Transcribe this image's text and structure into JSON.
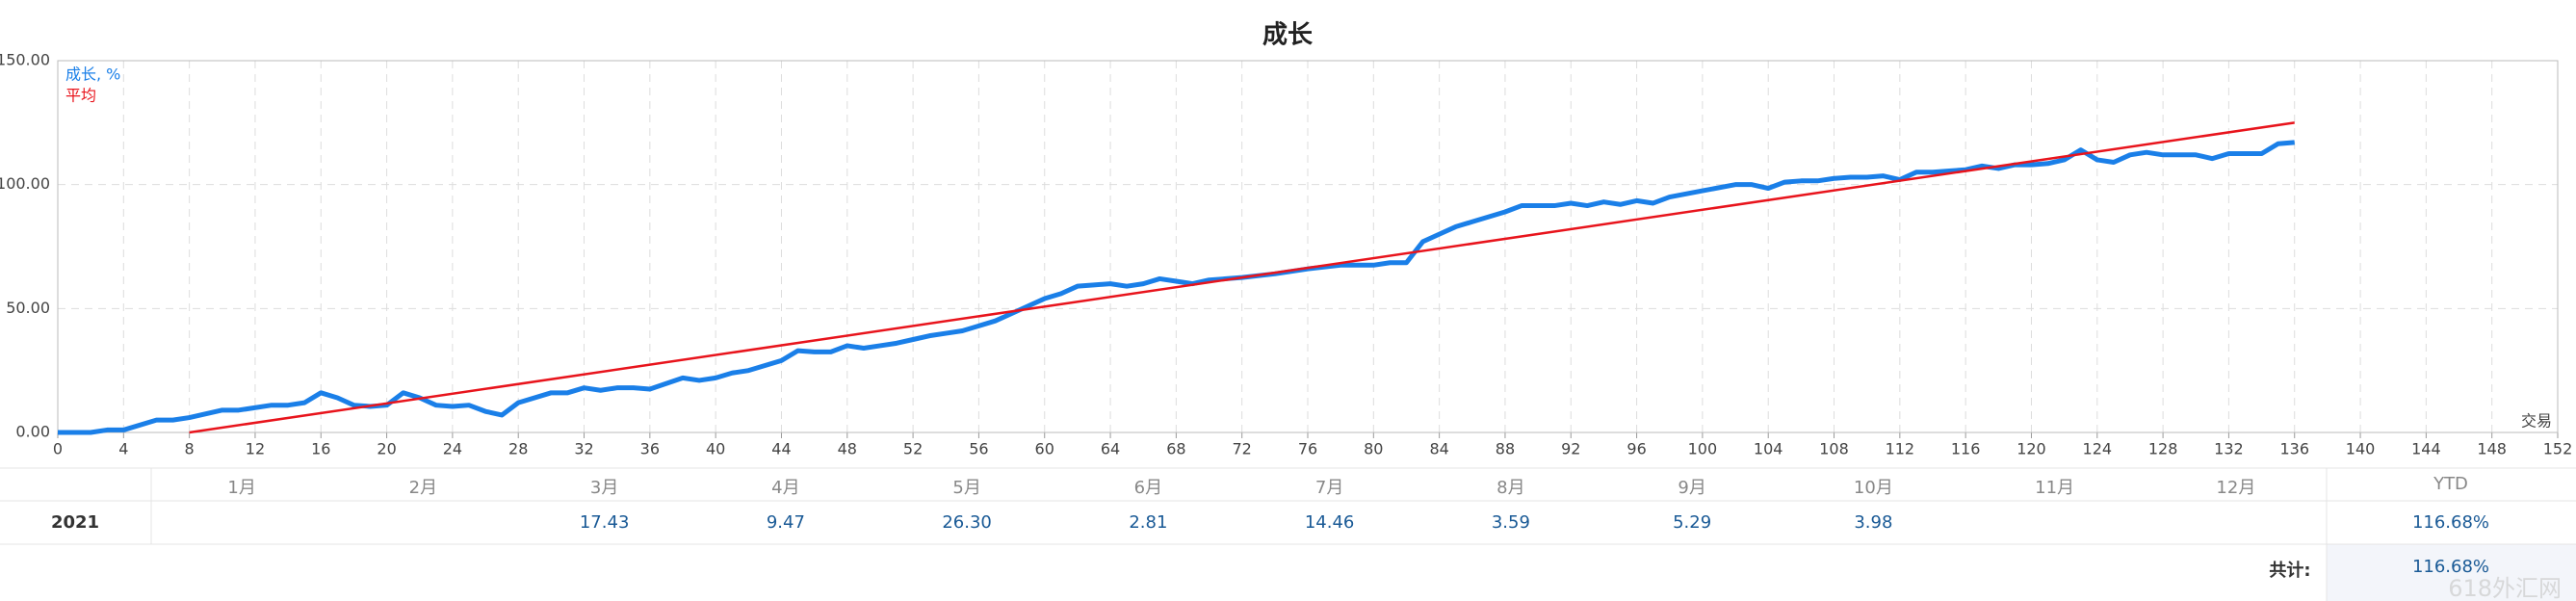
{
  "chart_data": {
    "type": "line",
    "title": "成长",
    "x_label": "交易",
    "grid": true,
    "xlim": [
      0,
      152
    ],
    "xticks": [
      0,
      4,
      8,
      12,
      16,
      20,
      24,
      28,
      32,
      36,
      40,
      44,
      48,
      52,
      56,
      60,
      64,
      68,
      72,
      76,
      80,
      84,
      88,
      92,
      96,
      100,
      104,
      108,
      112,
      116,
      120,
      124,
      128,
      132,
      136,
      140,
      144,
      148,
      152
    ],
    "ylim": [
      0,
      150
    ],
    "yticks": [
      {
        "value": 0,
        "label": "0.00"
      },
      {
        "value": 50,
        "label": "50.00"
      },
      {
        "value": 100,
        "label": "100.00"
      },
      {
        "value": 150,
        "label": "150.00"
      }
    ],
    "series": [
      {
        "name": "成长, %",
        "color": "#1a7fe8",
        "x": [
          0,
          2,
          3,
          4,
          6,
          7,
          8,
          10,
          11,
          13,
          14,
          15,
          16,
          17,
          18,
          19,
          20,
          21,
          22,
          23,
          24,
          25,
          26,
          27,
          28,
          30,
          31,
          32,
          33,
          34,
          35,
          36,
          38,
          39,
          40,
          41,
          42,
          43,
          44,
          45,
          46,
          47,
          48,
          49,
          50,
          51,
          52,
          53,
          54,
          55,
          56,
          57,
          58,
          59,
          60,
          61,
          62,
          63,
          64,
          65,
          66,
          67,
          68,
          69,
          70,
          72,
          74,
          76,
          78,
          80,
          81,
          82,
          83,
          84,
          85,
          86,
          87,
          88,
          89,
          90,
          91,
          92,
          93,
          94,
          95,
          96,
          97,
          98,
          100,
          102,
          103,
          104,
          105,
          106,
          107,
          108,
          109,
          110,
          111,
          112,
          113,
          114,
          115,
          116,
          117,
          118,
          119,
          120,
          121,
          122,
          123,
          124,
          125,
          126,
          127,
          128,
          130,
          131,
          132,
          134,
          135,
          136
        ],
        "values": [
          0,
          0,
          1,
          1,
          5,
          5,
          6,
          9,
          9,
          11,
          11,
          12,
          16,
          14,
          11,
          10.5,
          11,
          16,
          14,
          11,
          10.5,
          11,
          8.5,
          7,
          12,
          16,
          16,
          18,
          17,
          18,
          18,
          17.5,
          22,
          21,
          22,
          24,
          25,
          27,
          29,
          33,
          32.5,
          32.5,
          35,
          34,
          35,
          36,
          37.5,
          39,
          40,
          41,
          43,
          45,
          48,
          51,
          54,
          56,
          59,
          59.5,
          60,
          59,
          60,
          62,
          61,
          60,
          61.5,
          62.5,
          64,
          66,
          67.5,
          67.5,
          68.5,
          68.5,
          77,
          80,
          83,
          85,
          87,
          89,
          91.5,
          91.5,
          91.5,
          92.5,
          91.5,
          93,
          92,
          93.5,
          92.5,
          95,
          97.5,
          100,
          100,
          98.5,
          101,
          101.5,
          101.5,
          102.5,
          103,
          103,
          103.5,
          102,
          105,
          105,
          105.5,
          106,
          107.5,
          106.5,
          108,
          108,
          108.5,
          110,
          114,
          110,
          109,
          112,
          113,
          112,
          112,
          110.5,
          112.5,
          112.5,
          116.5,
          117
        ]
      },
      {
        "name": "平均",
        "color": "#e8141c",
        "x": [
          8,
          136
        ],
        "values": [
          0,
          125
        ]
      }
    ]
  },
  "table": {
    "header": [
      "1月",
      "2月",
      "3月",
      "4月",
      "5月",
      "6月",
      "7月",
      "8月",
      "9月",
      "10月",
      "11月",
      "12月",
      "YTD"
    ],
    "rows": [
      {
        "label": "2021",
        "values": [
          null,
          null,
          "17.43",
          "9.47",
          "26.30",
          "2.81",
          "14.46",
          "3.59",
          "5.29",
          "3.98",
          null,
          null
        ],
        "ytd": "116.68%"
      }
    ],
    "total_label": "共计:",
    "total": "116.68%"
  },
  "watermark": "618外汇网"
}
